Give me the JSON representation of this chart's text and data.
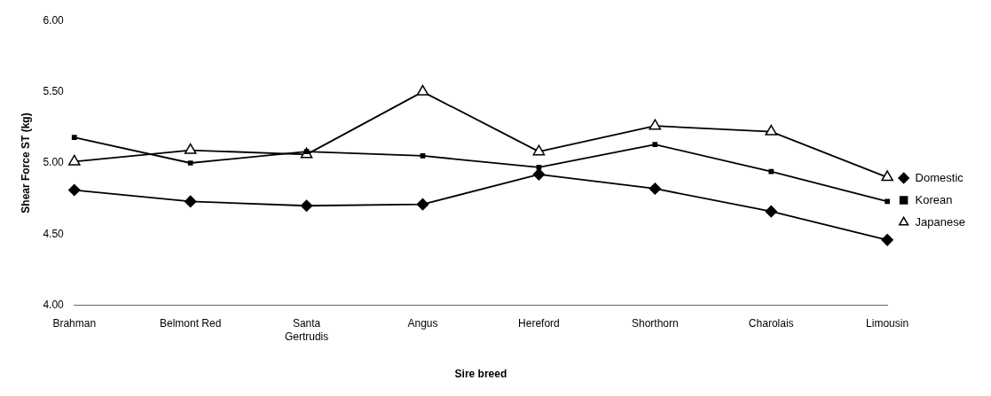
{
  "chart_data": {
    "type": "line",
    "xlabel": "Sire breed",
    "ylabel": "Shear Force ST (kg)",
    "categories": [
      "Brahman",
      "Belmont Red",
      [
        "Santa",
        "Gertrudis"
      ],
      "Angus",
      "Hereford",
      "Shorthorn",
      "Charolais",
      "Limousin"
    ],
    "series": [
      {
        "name": "Domestic",
        "color": "#000000",
        "marker": "diamond",
        "values": [
          4.81,
          4.73,
          4.7,
          4.71,
          4.92,
          4.82,
          4.66,
          4.46
        ]
      },
      {
        "name": "Korean",
        "color": "#000000",
        "marker": "square",
        "values": [
          5.18,
          5.0,
          5.08,
          5.05,
          4.97,
          5.13,
          4.94,
          4.73
        ]
      },
      {
        "name": "Japanese",
        "color": "#000000",
        "marker": "triangle",
        "values": [
          5.01,
          5.09,
          5.06,
          5.5,
          5.08,
          5.26,
          5.22,
          4.9
        ]
      }
    ],
    "ylim": [
      4,
      6
    ],
    "yticks": [
      {
        "value": 4,
        "label": "4.00"
      },
      {
        "value": 4.5,
        "label": "4.50"
      },
      {
        "value": 5,
        "label": "5.00"
      },
      {
        "value": 5.5,
        "label": "5.50"
      },
      {
        "value": 6,
        "label": "6.00"
      }
    ],
    "grid": false,
    "legend": "right",
    "line_style": "solid"
  }
}
